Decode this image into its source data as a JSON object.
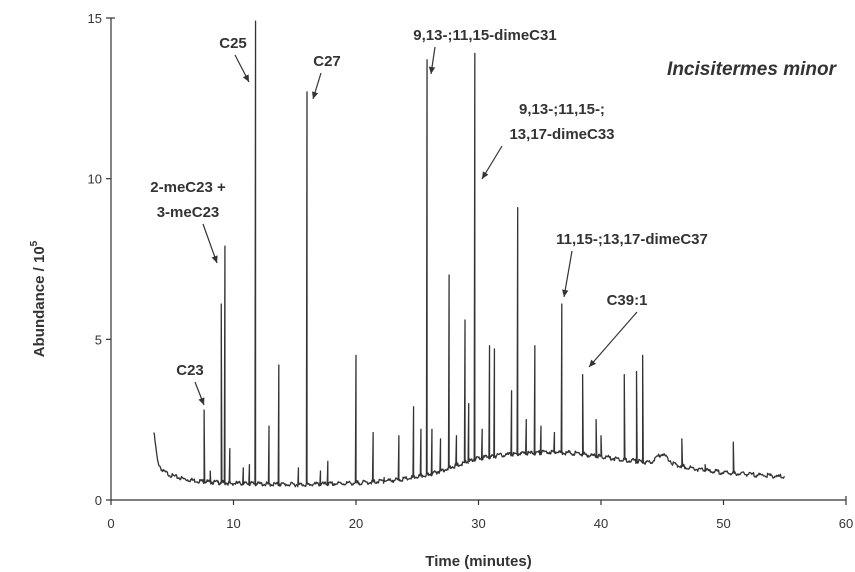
{
  "chart_data": {
    "type": "line",
    "title": "Incisitermes minor",
    "xlabel": "Time (minutes)",
    "ylabel": "Abundance / 10",
    "ylabel_sup": "5",
    "xlim": [
      0,
      60
    ],
    "ylim": [
      0,
      15
    ],
    "x_ticks": [
      0,
      10,
      20,
      30,
      40,
      50,
      60
    ],
    "y_ticks": [
      0,
      5,
      10,
      15
    ],
    "grid": false,
    "baseline": [
      [
        3.5,
        2.1
      ],
      [
        3.8,
        1.2
      ],
      [
        4.2,
        0.9
      ],
      [
        5,
        0.75
      ],
      [
        6,
        0.65
      ],
      [
        7,
        0.6
      ],
      [
        8.5,
        0.55
      ],
      [
        10,
        0.52
      ],
      [
        12,
        0.5
      ],
      [
        15,
        0.48
      ],
      [
        18,
        0.5
      ],
      [
        21,
        0.55
      ],
      [
        24,
        0.65
      ],
      [
        26,
        0.8
      ],
      [
        28,
        1.05
      ],
      [
        30,
        1.3
      ],
      [
        32,
        1.4
      ],
      [
        34,
        1.45
      ],
      [
        36,
        1.5
      ],
      [
        38,
        1.45
      ],
      [
        40,
        1.35
      ],
      [
        42,
        1.25
      ],
      [
        44,
        1.15
      ],
      [
        45,
        1.45
      ],
      [
        46,
        1.1
      ],
      [
        48,
        0.95
      ],
      [
        50,
        0.85
      ],
      [
        52,
        0.8
      ],
      [
        54,
        0.75
      ],
      [
        55,
        0.72
      ]
    ],
    "peaks": [
      [
        7.6,
        2.8
      ],
      [
        8.1,
        0.9
      ],
      [
        9.0,
        6.1
      ],
      [
        9.3,
        7.9
      ],
      [
        9.7,
        1.6
      ],
      [
        10.8,
        1.0
      ],
      [
        11.3,
        1.1
      ],
      [
        11.8,
        14.9
      ],
      [
        12.9,
        2.3
      ],
      [
        13.7,
        4.2
      ],
      [
        15.3,
        1.0
      ],
      [
        16.0,
        12.7
      ],
      [
        17.1,
        0.9
      ],
      [
        17.7,
        1.2
      ],
      [
        20.0,
        4.5
      ],
      [
        21.4,
        2.1
      ],
      [
        22.3,
        0.7
      ],
      [
        23.5,
        2.0
      ],
      [
        24.7,
        2.9
      ],
      [
        25.3,
        2.2
      ],
      [
        25.8,
        13.7
      ],
      [
        26.2,
        2.2
      ],
      [
        26.9,
        1.9
      ],
      [
        27.6,
        7.0
      ],
      [
        28.2,
        2.0
      ],
      [
        28.9,
        5.6
      ],
      [
        29.2,
        3.0
      ],
      [
        29.7,
        13.9
      ],
      [
        30.3,
        2.2
      ],
      [
        30.9,
        4.8
      ],
      [
        31.3,
        4.7
      ],
      [
        32.7,
        3.4
      ],
      [
        33.2,
        9.1
      ],
      [
        33.9,
        2.5
      ],
      [
        34.6,
        4.8
      ],
      [
        35.1,
        2.3
      ],
      [
        36.2,
        2.1
      ],
      [
        36.8,
        6.1
      ],
      [
        38.5,
        3.9
      ],
      [
        39.6,
        2.5
      ],
      [
        40.0,
        2.0
      ],
      [
        41.9,
        3.9
      ],
      [
        42.9,
        4.0
      ],
      [
        43.4,
        4.5
      ],
      [
        46.6,
        1.9
      ],
      [
        48.5,
        1.1
      ],
      [
        50.8,
        1.8
      ]
    ],
    "annotations": [
      {
        "label": "C23",
        "x": 7.6,
        "y": 2.8
      },
      {
        "label": "2-meC23 +",
        "label2": "3-meC23",
        "x": 9.1,
        "y": 7.2
      },
      {
        "label": "C25",
        "x": 11.8,
        "y": 13.6
      },
      {
        "label": "C27",
        "x": 16.1,
        "y": 12.3
      },
      {
        "label": "9,13-;11,15-dimeC31",
        "x": 26.3,
        "y": 13.0
      },
      {
        "label": "9,13-;11,15-;",
        "label2": "13,17-dimeC33",
        "x": 29.9,
        "y": 9.9
      },
      {
        "label": "11,15-;13,17-dimeC37",
        "x": 36.8,
        "y": 6.2
      },
      {
        "label": "C39:1",
        "x": 38.8,
        "y": 3.9
      }
    ]
  }
}
